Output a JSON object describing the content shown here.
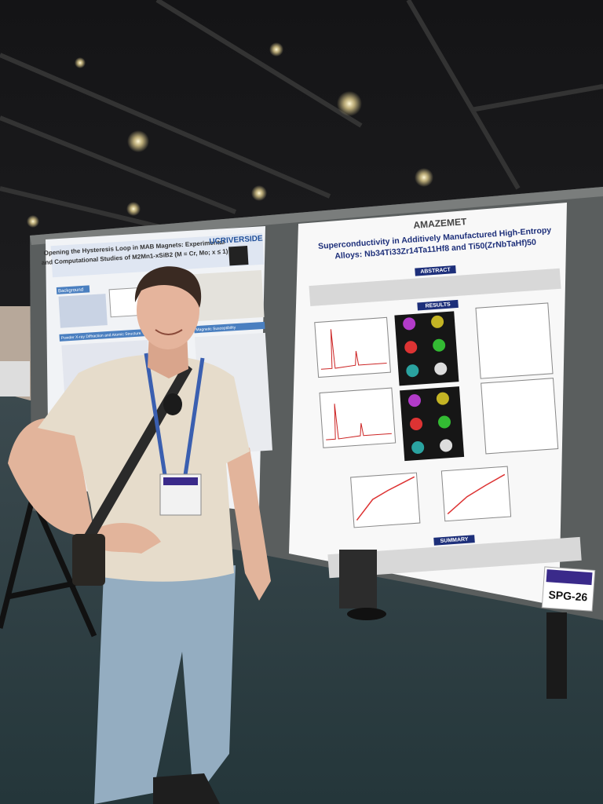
{
  "left_poster": {
    "title_line1": "Opening the Hysteresis Loop in MAB Magnets: Experimental",
    "title_line2": "and Computational Studies of M2Mn1-xSiB2 (M = Cr, Mo; x ≤ 1)",
    "logo": "UCRIVERSIDE",
    "section1": "Background",
    "section2": "Powder X-ray Diffraction and Atomic Structure",
    "section3": "Magnetic Susceptibility"
  },
  "right_poster": {
    "logo": "AMAZEMET",
    "title_line1": "Superconductivity in Additively Manufactured High-Entropy",
    "title_line2": "Alloys: Nb34Ti33Zr14Ta11Hf8 and Ti50(ZrNbTaHf)50",
    "abstract": "ABSTRACT",
    "results": "RESULTS",
    "summary": "SUMMARY"
  },
  "sign": "SPG-26"
}
